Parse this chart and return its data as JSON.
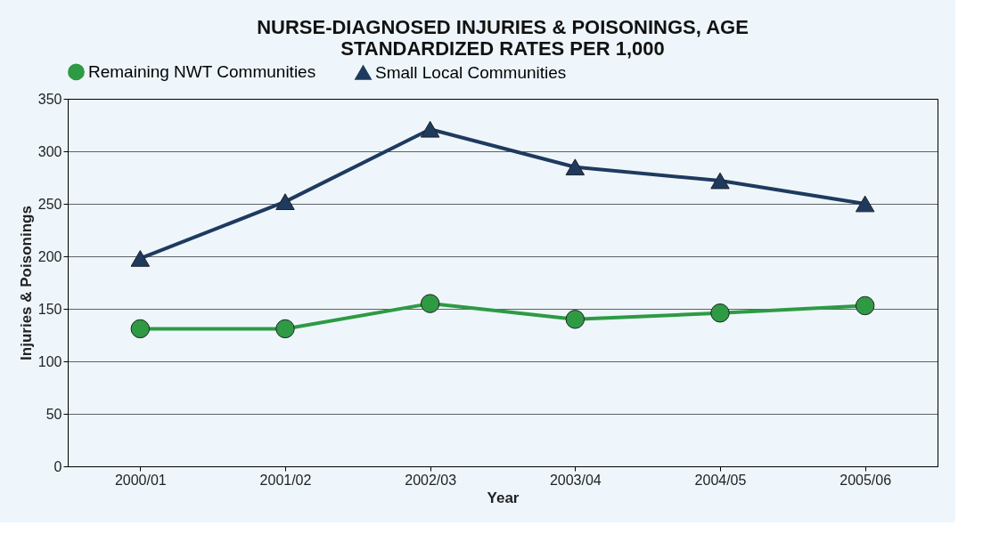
{
  "chart_data": {
    "type": "line",
    "title": "NURSE-DIAGNOSED INJURIES & POISONINGS, AGE STANDARDIZED RATES PER 1,000",
    "xlabel": "Year",
    "ylabel": "Injuries & Poisonings",
    "categories": [
      "2000/01",
      "2001/02",
      "2002/03",
      "2003/04",
      "2004/05",
      "2005/06"
    ],
    "series": [
      {
        "name": "Remaining NWT Communities",
        "color": "#2e9a44",
        "marker": "circle",
        "values": [
          131,
          131,
          155,
          140,
          146,
          153
        ]
      },
      {
        "name": "Small Local Communities",
        "color": "#1f3a5f",
        "marker": "triangle",
        "values": [
          198,
          252,
          321,
          285,
          272,
          250
        ]
      }
    ],
    "ylim": [
      0,
      350
    ],
    "yticks": [
      0,
      50,
      100,
      150,
      200,
      250,
      300,
      350
    ],
    "grid": "y",
    "legend": "top"
  }
}
